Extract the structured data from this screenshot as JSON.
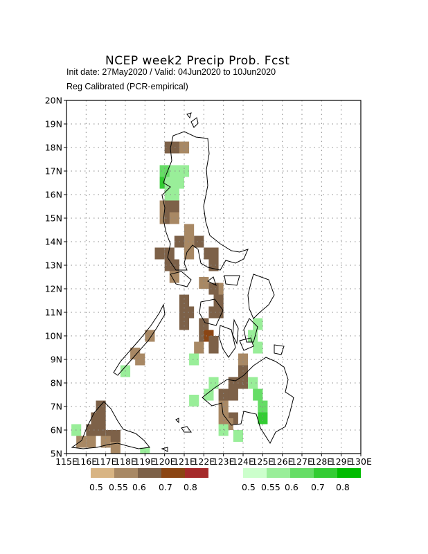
{
  "title": "NCEP week2 Precip Prob. Fcst",
  "subtitle_1": "Init date: 27May2020 / Valid: 04Jun2020 to 10Jun2020",
  "subtitle_2": "Reg Calibrated (PCR-empirical)",
  "axes": {
    "lat_labels": [
      "5N",
      "6N",
      "7N",
      "8N",
      "9N",
      "10N",
      "11N",
      "12N",
      "13N",
      "14N",
      "15N",
      "16N",
      "17N",
      "18N",
      "19N",
      "20N"
    ],
    "lon_labels": [
      "115E",
      "116E",
      "117E",
      "118E",
      "119E",
      "120E",
      "121E",
      "122E",
      "123E",
      "124E",
      "125E",
      "126E",
      "127E",
      "128E",
      "129E",
      "130E"
    ],
    "lon_range": [
      115,
      130
    ],
    "lat_range": [
      5,
      20
    ],
    "grid": "dotted"
  },
  "legend": {
    "dry": {
      "colors": [
        "#d8b483",
        "#a88864",
        "#7d6148",
        "#8b4513",
        "#a52a2a"
      ],
      "labels": [
        "0.5",
        "0.55",
        "0.6",
        "0.7",
        "0.8"
      ]
    },
    "wet": {
      "colors": [
        "#ccffcc",
        "#99ee99",
        "#66dd66",
        "#33cc33",
        "#00bb00"
      ],
      "labels": [
        "0.5",
        "0.55",
        "0.6",
        "0.7",
        "0.8"
      ]
    }
  },
  "chart_data": {
    "type": "heatmap",
    "title": "NCEP week2 Precip Prob. Fcst",
    "cell_size_deg": 0.5,
    "dry_cells": [
      [
        120.25,
        18.0,
        2
      ],
      [
        120.5,
        18.0,
        2
      ],
      [
        120.75,
        18.0,
        2
      ],
      [
        121.0,
        18.0,
        1
      ],
      [
        120.0,
        15.5,
        1
      ],
      [
        120.25,
        15.5,
        2
      ],
      [
        120.5,
        15.5,
        2
      ],
      [
        120.0,
        15.0,
        1
      ],
      [
        120.25,
        15.0,
        2
      ],
      [
        120.5,
        15.0,
        1
      ],
      [
        121.25,
        14.5,
        1
      ],
      [
        120.75,
        14.0,
        2
      ],
      [
        121.25,
        14.0,
        1
      ],
      [
        121.75,
        14.0,
        2
      ],
      [
        119.75,
        13.5,
        2
      ],
      [
        120.25,
        13.5,
        2
      ],
      [
        121.25,
        13.5,
        1
      ],
      [
        122.25,
        13.5,
        2
      ],
      [
        122.5,
        13.5,
        2
      ],
      [
        120.25,
        13.0,
        2
      ],
      [
        120.5,
        13.0,
        2
      ],
      [
        122.5,
        13.0,
        2
      ],
      [
        120.5,
        12.5,
        1
      ],
      [
        122.0,
        12.25,
        1
      ],
      [
        122.75,
        12.0,
        1
      ],
      [
        122.5,
        12.0,
        2
      ],
      [
        122.75,
        11.5,
        2
      ],
      [
        122.5,
        11.0,
        2
      ],
      [
        122.75,
        11.0,
        2
      ],
      [
        121.0,
        11.5,
        2
      ],
      [
        121.0,
        11.0,
        2
      ],
      [
        121.25,
        11.0,
        2
      ],
      [
        121.0,
        10.5,
        2
      ],
      [
        122.0,
        10.5,
        2
      ],
      [
        122.0,
        10.0,
        2
      ],
      [
        122.25,
        10.0,
        3
      ],
      [
        122.5,
        9.75,
        2
      ],
      [
        121.75,
        9.5,
        1
      ],
      [
        122.5,
        9.5,
        2
      ],
      [
        124.0,
        9.0,
        1
      ],
      [
        124.0,
        8.5,
        2
      ],
      [
        123.5,
        8.0,
        2
      ],
      [
        123.75,
        8.0,
        2
      ],
      [
        124.0,
        8.0,
        2
      ],
      [
        123.0,
        7.5,
        2
      ],
      [
        123.25,
        7.5,
        2
      ],
      [
        123.5,
        7.5,
        2
      ],
      [
        123.0,
        7.0,
        1
      ],
      [
        123.0,
        6.5,
        1
      ],
      [
        123.5,
        6.5,
        2
      ],
      [
        123.25,
        6.25,
        1
      ],
      [
        116.75,
        7.0,
        2
      ],
      [
        116.5,
        6.5,
        2
      ],
      [
        116.75,
        6.5,
        2
      ],
      [
        116.25,
        6.0,
        2
      ],
      [
        116.75,
        6.0,
        2
      ],
      [
        117.25,
        5.75,
        2
      ],
      [
        117.5,
        5.75,
        2
      ],
      [
        115.75,
        5.5,
        1
      ],
      [
        116.25,
        5.5,
        1
      ],
      [
        117.0,
        5.5,
        1
      ],
      [
        117.5,
        5.25,
        1
      ],
      [
        118.5,
        9.25,
        1
      ],
      [
        119.25,
        10.0,
        1
      ],
      [
        118.75,
        9.0,
        1
      ]
    ],
    "wet_cells": [
      [
        120.0,
        17.0,
        2
      ],
      [
        120.25,
        17.0,
        2
      ],
      [
        120.5,
        17.0,
        1
      ],
      [
        120.75,
        17.0,
        1
      ],
      [
        121.0,
        17.0,
        1
      ],
      [
        120.0,
        16.5,
        3
      ],
      [
        120.25,
        16.5,
        1
      ],
      [
        120.5,
        16.5,
        1
      ],
      [
        120.75,
        16.5,
        1
      ],
      [
        120.25,
        16.0,
        1
      ],
      [
        120.5,
        16.0,
        1
      ],
      [
        124.75,
        10.5,
        1
      ],
      [
        124.5,
        10.0,
        1
      ],
      [
        124.75,
        9.5,
        1
      ],
      [
        121.5,
        7.25,
        1
      ],
      [
        122.25,
        7.5,
        1
      ],
      [
        122.5,
        8.0,
        1
      ],
      [
        124.5,
        8.0,
        1
      ],
      [
        124.75,
        7.5,
        2
      ],
      [
        125.0,
        7.0,
        2
      ],
      [
        125.0,
        6.5,
        3
      ],
      [
        123.0,
        6.0,
        1
      ],
      [
        123.75,
        5.75,
        1
      ],
      [
        115.5,
        6.0,
        1
      ],
      [
        118.0,
        8.5,
        1
      ],
      [
        119.0,
        5.0,
        1
      ],
      [
        121.5,
        9.0,
        1
      ]
    ]
  }
}
